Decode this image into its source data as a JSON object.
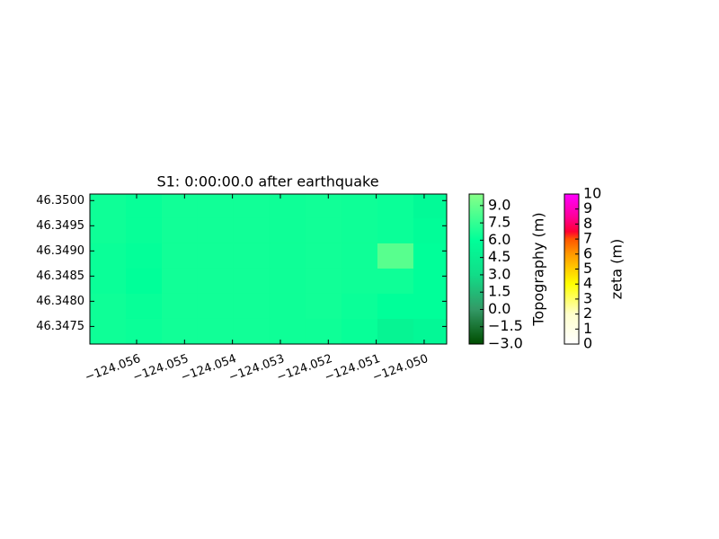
{
  "chart_data": {
    "type": "heatmap",
    "title": "S1: 0:00:00.0 after earthquake",
    "x": [
      -124.0566,
      -124.05585,
      -124.0551,
      -124.05435,
      -124.0536,
      -124.05285,
      -124.0521,
      -124.05135,
      -124.0506,
      -124.04985
    ],
    "y": [
      46.3499,
      46.3494,
      46.3489,
      46.3484,
      46.3479,
      46.3474
    ],
    "values": [
      [
        6.4,
        6.2,
        6.5,
        6.5,
        6.5,
        6.4,
        6.5,
        6.4,
        6.3,
        5.6
      ],
      [
        6.4,
        6.2,
        6.5,
        6.5,
        6.5,
        6.4,
        6.5,
        6.4,
        6.3,
        5.8
      ],
      [
        6.3,
        6.1,
        6.5,
        6.5,
        6.5,
        6.4,
        6.5,
        6.4,
        8.6,
        6.0
      ],
      [
        6.3,
        6.0,
        6.5,
        6.5,
        6.5,
        6.4,
        6.5,
        6.4,
        6.4,
        6.0
      ],
      [
        6.4,
        6.2,
        6.5,
        6.5,
        6.5,
        6.4,
        6.5,
        6.3,
        6.0,
        6.0
      ],
      [
        6.4,
        6.3,
        6.5,
        6.5,
        6.5,
        6.4,
        6.4,
        6.2,
        5.0,
        5.4
      ]
    ],
    "xlim": [
      -124.056975,
      -124.04953
    ],
    "ylim": [
      46.34715,
      46.35013
    ],
    "xticks": [
      {
        "value": -124.056,
        "label": "−124.056"
      },
      {
        "value": -124.055,
        "label": "−124.055"
      },
      {
        "value": -124.054,
        "label": "−124.054"
      },
      {
        "value": -124.053,
        "label": "−124.053"
      },
      {
        "value": -124.052,
        "label": "−124.052"
      },
      {
        "value": -124.051,
        "label": "−124.051"
      },
      {
        "value": -124.05,
        "label": "−124.050"
      }
    ],
    "yticks": [
      {
        "value": 46.3475,
        "label": "46.3475"
      },
      {
        "value": 46.348,
        "label": "46.3480"
      },
      {
        "value": 46.3485,
        "label": "46.3485"
      },
      {
        "value": 46.349,
        "label": "46.3490"
      },
      {
        "value": 46.3495,
        "label": "46.3495"
      },
      {
        "value": 46.35,
        "label": "46.3500"
      }
    ],
    "colorbars": [
      {
        "label": "Topography (m)",
        "lim": [
          -3,
          10
        ],
        "ticks": [
          {
            "value": -3,
            "label": "−3.0"
          },
          {
            "value": -1.5,
            "label": "−1.5"
          },
          {
            "value": 0,
            "label": "0.0"
          },
          {
            "value": 1.5,
            "label": "1.5"
          },
          {
            "value": 3,
            "label": "3.0"
          },
          {
            "value": 4.5,
            "label": "4.5"
          },
          {
            "value": 6,
            "label": "6.0"
          },
          {
            "value": 7.5,
            "label": "7.5"
          },
          {
            "value": 9,
            "label": "9.0"
          }
        ],
        "colormap": [
          {
            "value": -3,
            "color": "#004d00"
          },
          {
            "value": 0,
            "color": "#339966"
          },
          {
            "value": 3,
            "color": "#11dd88"
          },
          {
            "value": 6,
            "color": "#00ff99"
          },
          {
            "value": 10,
            "color": "#88ff88"
          }
        ]
      },
      {
        "label": "zeta (m)",
        "lim": [
          0,
          10
        ],
        "ticks": [
          0,
          1,
          2,
          3,
          4,
          5,
          6,
          7,
          8,
          9,
          10
        ],
        "colormap": [
          {
            "value": 0,
            "color": "#ffffff"
          },
          {
            "value": 2,
            "color": "#ffffcc"
          },
          {
            "value": 4,
            "color": "#ffff00"
          },
          {
            "value": 6,
            "color": "#ff9900"
          },
          {
            "value": 7,
            "color": "#ff5500"
          },
          {
            "value": 7.5,
            "color": "#ff0033"
          },
          {
            "value": 8.5,
            "color": "#ff0099"
          },
          {
            "value": 10,
            "color": "#ff00ff"
          }
        ]
      }
    ]
  }
}
